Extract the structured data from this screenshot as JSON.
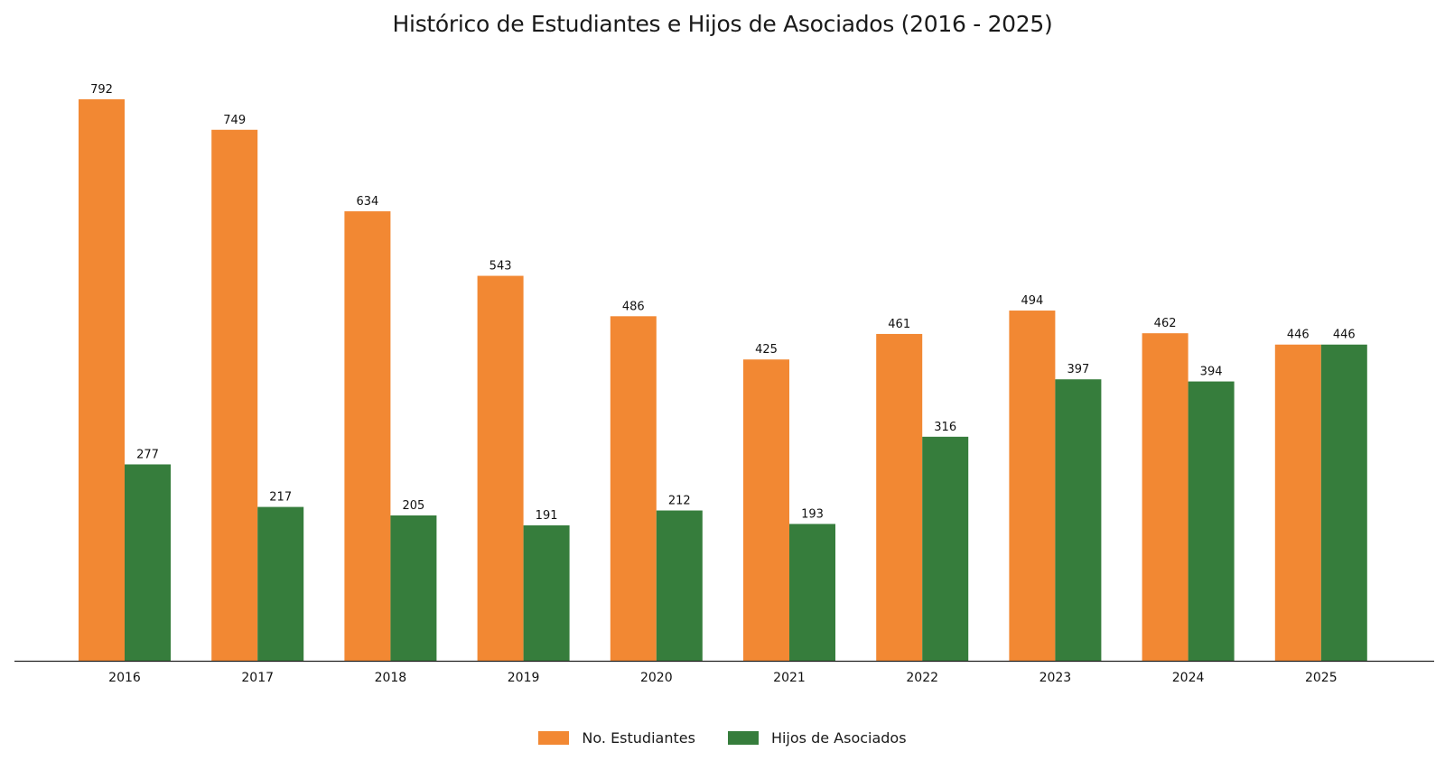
{
  "chart_data": {
    "type": "bar",
    "title": "Histórico de Estudiantes e Hijos de Asociados (2016 - 2025)",
    "xlabel": "",
    "ylabel": "",
    "categories": [
      "2016",
      "2017",
      "2018",
      "2019",
      "2020",
      "2021",
      "2022",
      "2023",
      "2024",
      "2025"
    ],
    "series": [
      {
        "name": "No. Estudiantes",
        "color": "#F28833",
        "values": [
          792,
          749,
          634,
          543,
          486,
          425,
          461,
          494,
          462,
          446
        ]
      },
      {
        "name": "Hijos de Asociados",
        "color": "#367D3C",
        "values": [
          277,
          217,
          205,
          191,
          212,
          193,
          316,
          397,
          394,
          446
        ]
      }
    ],
    "ylim": [
      0,
      830
    ],
    "grid": false,
    "legend_position": "bottom-center"
  }
}
